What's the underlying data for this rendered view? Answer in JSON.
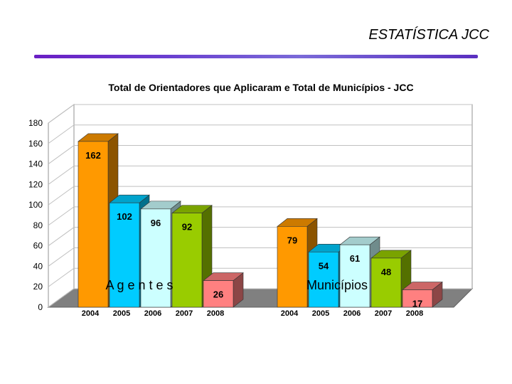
{
  "slide": {
    "title": "ESTATÍSTICA JCC"
  },
  "colors": {
    "rule_start": "#6a1fc4",
    "rule_end": "#5a2fc0",
    "bar_2004": "#ff9900",
    "bar_2005": "#00ccff",
    "bar_2006": "#ccffff",
    "bar_2007": "#99cc00",
    "bar_2008": "#ff8080",
    "floor": "#808080",
    "gridline": "#c0c0c0"
  },
  "chart_data": {
    "type": "bar",
    "title": "Total de Orientadores que Aplicaram e Total de Municípios - JCC",
    "ylim": [
      0,
      180
    ],
    "yticks": [
      0,
      20,
      40,
      60,
      80,
      100,
      120,
      140,
      160,
      180
    ],
    "grid": true,
    "three_d": true,
    "categories": [
      "2004",
      "2005",
      "2006",
      "2007",
      "2008"
    ],
    "groups": [
      {
        "name": "A g e n t e s",
        "values": [
          162,
          102,
          96,
          92,
          26
        ]
      },
      {
        "name": "Municípios",
        "values": [
          79,
          54,
          61,
          48,
          17
        ]
      }
    ]
  }
}
